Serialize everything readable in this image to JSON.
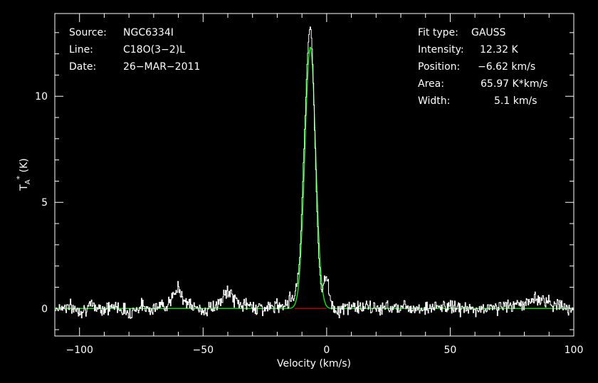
{
  "chart_data": {
    "type": "line",
    "xlabel": "Velocity (km/s)",
    "ylabel_main": "T",
    "ylabel_sub": "A",
    "ylabel_sup": "*",
    "ylabel_unit": "(K)",
    "xlim": [
      -110,
      100
    ],
    "ylim": [
      -1.3,
      13.9
    ],
    "x_ticks": [
      -100,
      -50,
      0,
      50,
      100
    ],
    "x_tick_labels": [
      "−100",
      "−50",
      "0",
      "50",
      "100"
    ],
    "y_ticks": [
      0,
      5,
      10
    ],
    "y_tick_labels": [
      "0",
      "5",
      "10"
    ],
    "grid": false,
    "colors": {
      "background": "#000000",
      "spectrum": "#ffffff",
      "fit": "#00ff00",
      "baseline": "#ff0000",
      "axes": "#ffffff"
    },
    "info_left": {
      "source_label": "Source:",
      "source_value": "NGC6334I",
      "line_label": "Line:",
      "line_value": "C18O(3−2)L",
      "date_label": "Date:",
      "date_value": "26−MAR−2011"
    },
    "info_right": {
      "fit_type_label": "Fit type:",
      "fit_type_value": "GAUSS",
      "intensity_label": "Intensity:",
      "intensity_value": "12.32 K",
      "position_label": "Position:",
      "position_value": "−6.62 km/s",
      "area_label": "Area:",
      "area_value": "65.97 K*km/s",
      "width_label": "Width:",
      "width_value": "5.1 km/s"
    },
    "series": [
      {
        "name": "",
        "x": [
          -110,
          -105,
          -100,
          -95,
          -90,
          -85,
          -80,
          -75,
          -70,
          -65,
          -62,
          -60,
          -58,
          -55,
          -50,
          -45,
          -42,
          -40,
          -38,
          -35,
          -30,
          -25,
          -20,
          -16,
          -13,
          -11,
          -10,
          -9,
          -8,
          -7.5,
          -7,
          -6.6,
          -6,
          -5.5,
          -5,
          -4,
          -3,
          -2,
          -1,
          0,
          1,
          2,
          3,
          5,
          10,
          20,
          30,
          40,
          50,
          60,
          70,
          80,
          85,
          90,
          95,
          100
        ],
        "y": [
          0,
          0.1,
          -0.1,
          0.1,
          0,
          0.1,
          -0.2,
          0.1,
          0,
          0.2,
          0.5,
          1.0,
          0.5,
          0.1,
          -0.1,
          0.1,
          0.4,
          0.9,
          0.5,
          0.2,
          0.1,
          0,
          0.1,
          0.3,
          0.6,
          2.0,
          4.8,
          8.0,
          11.2,
          12.4,
          13.1,
          13.3,
          12.6,
          11.2,
          9.0,
          5.0,
          2.0,
          0.8,
          1.2,
          1.7,
          0.8,
          0.2,
          0,
          -0.1,
          0.1,
          0,
          0.1,
          0,
          0.1,
          -0.1,
          0.1,
          0.2,
          0.5,
          0.3,
          0.1,
          0
        ],
        "style": "noisy-step"
      },
      {
        "name": "",
        "type": "gaussian",
        "amplitude": 12.32,
        "center": -6.62,
        "fwhm": 5.1,
        "range": [
          -110,
          100
        ]
      },
      {
        "name": "",
        "type": "hline",
        "y": 0,
        "range": [
          -13,
          0
        ]
      }
    ]
  }
}
